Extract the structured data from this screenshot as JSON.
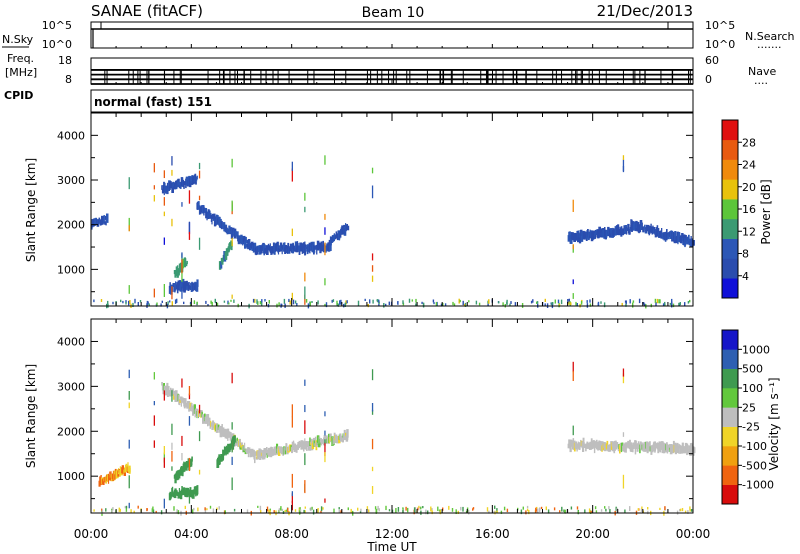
{
  "header": {
    "station": "SANAE (fitACF)",
    "beam": "Beam 10",
    "date": "21/Dec/2013"
  },
  "nsky_panel": {
    "left_label": "N.Sky",
    "left_ticks": [
      "10^5",
      "10^0"
    ],
    "right_ticks": [
      "10^5",
      "10^0"
    ],
    "right_label": "N.Search",
    "right_dots": "......."
  },
  "freq_panel": {
    "left_label_line1": "Freq.",
    "left_label_line2": "[MHz]",
    "left_ticks": [
      "18",
      "8"
    ],
    "right_ticks": [
      "60",
      "0"
    ],
    "right_label": "Nave",
    "right_dots": "....",
    "band_values_mhz": [
      8.0,
      9.8,
      11.6,
      13.4
    ]
  },
  "cpid_panel": {
    "label": "CPID",
    "mode": "normal (fast) 151"
  },
  "colors": {
    "power_scale": [
      "#1010d8",
      "#2a4cae",
      "#2c57b6",
      "#3b9a73",
      "#5cc63a",
      "#e8c20c",
      "#f08a0c",
      "#e85a10",
      "#e01010"
    ],
    "velocity_scale": [
      "#d80c0c",
      "#f06410",
      "#f0a010",
      "#f0d428",
      "#bebebe",
      "#62c83c",
      "#3f9a50",
      "#2e5fb2",
      "#1616c8"
    ]
  },
  "chart_data": [
    {
      "type": "heatmap",
      "name": "power",
      "ylabel": "Slant Range [km]",
      "ylim": [
        180,
        4500
      ],
      "yticks": [
        "1000",
        "2000",
        "3000",
        "4000"
      ],
      "xlim_hours": [
        0,
        24
      ],
      "colorbar_label": "Power [dB]",
      "colorbar_ticks": [
        "4",
        "8",
        "12",
        "16",
        "20",
        "24",
        "28"
      ],
      "colorbar_range": [
        0,
        30
      ],
      "features": [
        {
          "from_hour": 0.0,
          "to_hour": 0.6,
          "range_km": [
            2000,
            2100
          ],
          "value_db": 6
        },
        {
          "from_hour": 2.8,
          "to_hour": 4.2,
          "range_km": [
            2800,
            3000
          ],
          "value_db": 6
        },
        {
          "from_hour": 4.2,
          "to_hour": 6.5,
          "range_km": [
            2400,
            1450
          ],
          "value_db": 7
        },
        {
          "from_hour": 6.5,
          "to_hour": 9.5,
          "range_km": [
            1450,
            1500
          ],
          "value_db": 6
        },
        {
          "from_hour": 9.5,
          "to_hour": 10.2,
          "range_km": [
            1600,
            1950
          ],
          "value_db": 6
        },
        {
          "from_hour": 3.1,
          "to_hour": 4.2,
          "range_km": [
            600,
            650
          ],
          "value_db": 6
        },
        {
          "from_hour": 3.3,
          "to_hour": 3.8,
          "range_km": [
            900,
            1150
          ],
          "value_db": 12
        },
        {
          "from_hour": 5.1,
          "to_hour": 5.6,
          "range_km": [
            1100,
            1600
          ],
          "value_db": 11
        },
        {
          "from_hour": 19.0,
          "to_hour": 21.5,
          "range_km": [
            1700,
            1900
          ],
          "value_db": 6
        },
        {
          "from_hour": 21.5,
          "to_hour": 24.0,
          "range_km": [
            2000,
            1600
          ],
          "value_db": 6
        }
      ]
    },
    {
      "type": "heatmap",
      "name": "velocity",
      "xlabel": "Time UT",
      "ylabel": "Slant Range [km]",
      "ylim": [
        180,
        4500
      ],
      "yticks": [
        "1000",
        "2000",
        "3000",
        "4000"
      ],
      "x_tick_labels": [
        "00:00",
        "04:00",
        "08:00",
        "12:00",
        "16:00",
        "20:00",
        "00:00"
      ],
      "colorbar_label": "Velocity [m s⁻¹]",
      "colorbar_ticks": [
        "1000",
        "500",
        "100",
        "25",
        "-25",
        "-100",
        "-500",
        "-1000"
      ],
      "features": [
        {
          "from_hour": 2.8,
          "to_hour": 6.5,
          "range_km": [
            3000,
            1450
          ],
          "velocity_ms": 0
        },
        {
          "from_hour": 6.5,
          "to_hour": 10.2,
          "range_km": [
            1450,
            1900
          ],
          "velocity_ms": 0
        },
        {
          "from_hour": 19.0,
          "to_hour": 24.0,
          "range_km": [
            1700,
            1600
          ],
          "velocity_ms": 0
        },
        {
          "from_hour": 3.1,
          "to_hour": 4.2,
          "range_km": [
            600,
            650
          ],
          "velocity_ms": 200
        },
        {
          "from_hour": 3.3,
          "to_hour": 4.0,
          "range_km": [
            950,
            1350
          ],
          "velocity_ms": 300
        },
        {
          "from_hour": 5.0,
          "to_hour": 5.7,
          "range_km": [
            1300,
            1800
          ],
          "velocity_ms": 200
        },
        {
          "from_hour": 0.3,
          "to_hour": 1.5,
          "range_km": [
            850,
            1200
          ],
          "velocity_ms": -100
        }
      ]
    }
  ]
}
